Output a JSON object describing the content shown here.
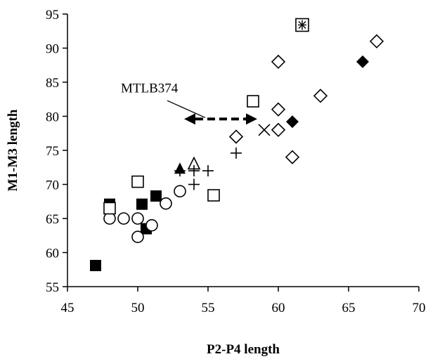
{
  "chart_data": {
    "type": "scatter",
    "title": "",
    "xlabel": "P2-P4 length",
    "ylabel": "M1-M3 length",
    "xlim": [
      45,
      70
    ],
    "ylim": [
      55,
      95
    ],
    "xticks": [
      45,
      50,
      55,
      60,
      65,
      70
    ],
    "yticks": [
      55,
      60,
      65,
      70,
      75,
      80,
      85,
      90,
      95
    ],
    "grid": false,
    "legend": "none",
    "series": [
      {
        "marker": "filled-square",
        "color": "#000000",
        "points": [
          [
            47,
            58.1
          ],
          [
            48,
            67.1
          ],
          [
            50.3,
            67.1
          ],
          [
            50.6,
            63.5
          ],
          [
            51.3,
            68.3
          ]
        ]
      },
      {
        "marker": "open-circle",
        "color": "#000000",
        "points": [
          [
            48,
            65
          ],
          [
            49,
            65
          ],
          [
            50,
            65
          ],
          [
            50,
            62.3
          ],
          [
            51,
            64
          ],
          [
            52,
            67.2
          ],
          [
            53,
            69
          ]
        ]
      },
      {
        "marker": "open-square",
        "color": "#000000",
        "points": [
          [
            50,
            70.4
          ],
          [
            55.4,
            68.4
          ],
          [
            58.2,
            82.2
          ],
          [
            48,
            66.5
          ]
        ]
      },
      {
        "marker": "filled-triangle",
        "color": "#000000",
        "points": [
          [
            53,
            72.3
          ]
        ]
      },
      {
        "marker": "open-triangle",
        "color": "#000000",
        "points": [
          [
            54,
            73
          ]
        ]
      },
      {
        "marker": "plus",
        "color": "#000000",
        "points": [
          [
            53,
            72
          ],
          [
            54,
            72
          ],
          [
            55,
            72
          ],
          [
            54,
            70
          ],
          [
            57,
            74.6
          ]
        ]
      },
      {
        "marker": "open-diamond",
        "color": "#000000",
        "points": [
          [
            57,
            77
          ],
          [
            60,
            88
          ],
          [
            60,
            81
          ],
          [
            60,
            78
          ],
          [
            61,
            74
          ],
          [
            63,
            83
          ],
          [
            67,
            91
          ]
        ]
      },
      {
        "marker": "filled-diamond",
        "color": "#000000",
        "points": [
          [
            61,
            79.2
          ],
          [
            66,
            88
          ]
        ]
      },
      {
        "marker": "cross",
        "color": "#000000",
        "points": [
          [
            59,
            78
          ]
        ]
      },
      {
        "marker": "boxed-asterisk",
        "color": "#000000",
        "points": [
          [
            61.7,
            93.4
          ]
        ]
      }
    ],
    "annotations": [
      {
        "text": "MTLB374",
        "arrow_from_x": 53.3,
        "arrow_to_x": 58.5,
        "arrow_y": 79.6,
        "style": "dashed double-headed arrow",
        "color": "#000000",
        "label_x": 48.8,
        "label_y": 83.5,
        "leader_from": [
          52.1,
          82.3
        ],
        "leader_to": [
          54.8,
          79.8
        ]
      }
    ]
  }
}
